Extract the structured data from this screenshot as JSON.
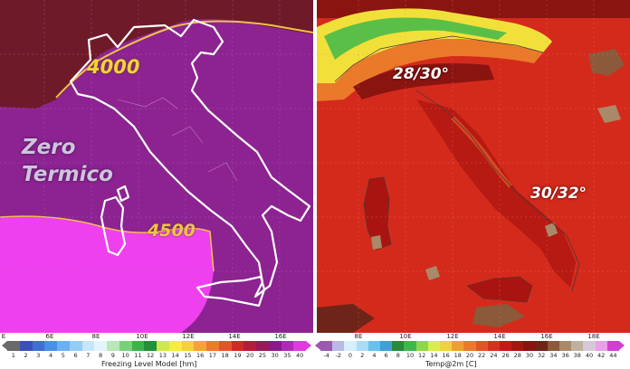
{
  "left_panel": {
    "label_zero_line1": "Zero",
    "label_zero_line2": "Termico",
    "contour_label_north": "4000",
    "contour_label_south": "4500",
    "colorbar_title": "Freezing Level Model [hm]",
    "colorbar_values": [
      "1",
      "2",
      "3",
      "4",
      "5",
      "6",
      "7",
      "8",
      "9",
      "10",
      "11",
      "12",
      "13",
      "14",
      "15",
      "16",
      "17",
      "18",
      "19",
      "20",
      "25",
      "30",
      "35",
      "40"
    ],
    "colorbar_colors": [
      "#6a6a6a",
      "#3a4fb8",
      "#3f6fd2",
      "#4a8fe8",
      "#6ab0f2",
      "#93cdf5",
      "#c4e6f8",
      "#e4f4fb",
      "#b8e8b8",
      "#7ad07a",
      "#3fb24a",
      "#20903a",
      "#cfe84a",
      "#f6ee3a",
      "#f7d038",
      "#f4a432",
      "#ee7a2a",
      "#e5532a",
      "#d32a28",
      "#b81c3a",
      "#9a1a58",
      "#8a1a8a",
      "#b02ab8",
      "#e03ae0"
    ],
    "longitude_labels": [
      "E",
      "6E",
      "8E",
      "10E",
      "12E",
      "14E",
      "16E"
    ],
    "colors": {
      "background": "#8c2391",
      "south_region": "#ee40ee",
      "north_dark": "#6e1a28",
      "borders": "#ffffff",
      "contour": "#f0c24a"
    }
  },
  "right_panel": {
    "label_north": "28/30°",
    "label_south": "30/32°",
    "colorbar_title": "Temp@2m [C]",
    "colorbar_values": [
      "-4",
      "-2",
      "0",
      "2",
      "4",
      "6",
      "8",
      "10",
      "12",
      "14",
      "16",
      "18",
      "20",
      "22",
      "24",
      "26",
      "28",
      "30",
      "32",
      "34",
      "36",
      "38",
      "40",
      "42",
      "44"
    ],
    "colorbar_colors": [
      "#9a5ab0",
      "#b9b9e8",
      "#d6f0ff",
      "#a8ddf5",
      "#69c0ec",
      "#3f9fd6",
      "#2a8a3a",
      "#3fb84a",
      "#8fd84a",
      "#d8ee4a",
      "#f2d23a",
      "#f0a030",
      "#ea7a2a",
      "#e25426",
      "#d83020",
      "#c81818",
      "#aa1410",
      "#8a1410",
      "#6e2418",
      "#8a5a3a",
      "#a88a6a",
      "#c0b0a0",
      "#d6c8d8",
      "#e8a0e8",
      "#d040d0"
    ],
    "longitude_labels": [
      "8E",
      "10E",
      "12E",
      "14E",
      "16E",
      "18E"
    ],
    "colors": {
      "sea": "#d42a1c",
      "land": "#b81a14",
      "alps": "#f2e03a",
      "hot": "#8a1410",
      "borders": "#3a3a3a"
    }
  }
}
